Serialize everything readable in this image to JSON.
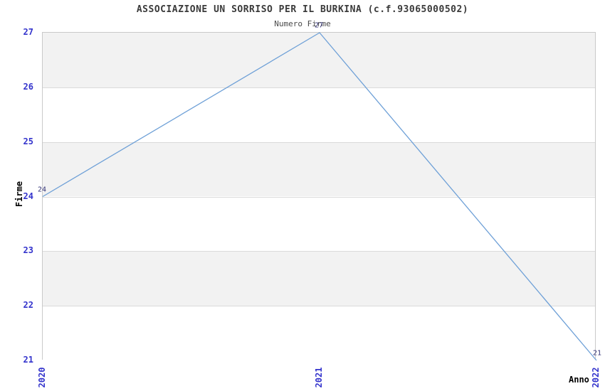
{
  "header": {
    "title": "ASSOCIAZIONE UN SORRISO PER IL BURKINA (c.f.93065000502)",
    "subtitle": "Numero Firme"
  },
  "chart_data": {
    "type": "line",
    "title": "ASSOCIAZIONE UN SORRISO PER IL BURKINA (c.f.93065000502)",
    "subtitle": "Numero Firme",
    "categories": [
      "2020",
      "2021",
      "2022"
    ],
    "series": [
      {
        "name": "Numero Firme",
        "values": [
          24,
          27,
          21
        ]
      }
    ],
    "data_labels": [
      "24",
      "27",
      "21"
    ],
    "xlabel": "Anno",
    "ylabel": "Firme",
    "ylim": [
      21,
      27
    ],
    "yticks": [
      27,
      26,
      25,
      24,
      23,
      22,
      21
    ],
    "ytick_step": 1,
    "grid": "horizontal-bands-alternating",
    "legend": "none"
  },
  "colors": {
    "background": "#ffffff",
    "band_gray": "#f2f2f2",
    "band_white": "#ffffff",
    "gridline": "#dadada",
    "plot_border": "#c9c9c9",
    "line": "#6ea0d7",
    "tick_label": "#3333cc",
    "data_label": "#333377",
    "title": "#3a3a3a",
    "subtitle": "#4a4a4a",
    "axis_title": "#000000"
  }
}
